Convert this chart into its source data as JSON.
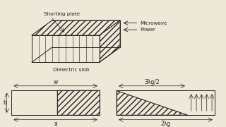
{
  "bg_color": "#ede8d8",
  "line_color": "#222222",
  "title_fontsize": 6.5,
  "label_fontsize": 5.5,
  "annotation_fontsize": 5.2,
  "shorting_plate_label": "Shorting plate",
  "dielectric_slob_label": "Dielectric slob",
  "microwave_label": "Microwave",
  "power_label": "Power",
  "w_label": "w",
  "a_label": "a",
  "b_label": "b",
  "lambda1_label": "3λg/2",
  "lambda2_label": "2λg"
}
